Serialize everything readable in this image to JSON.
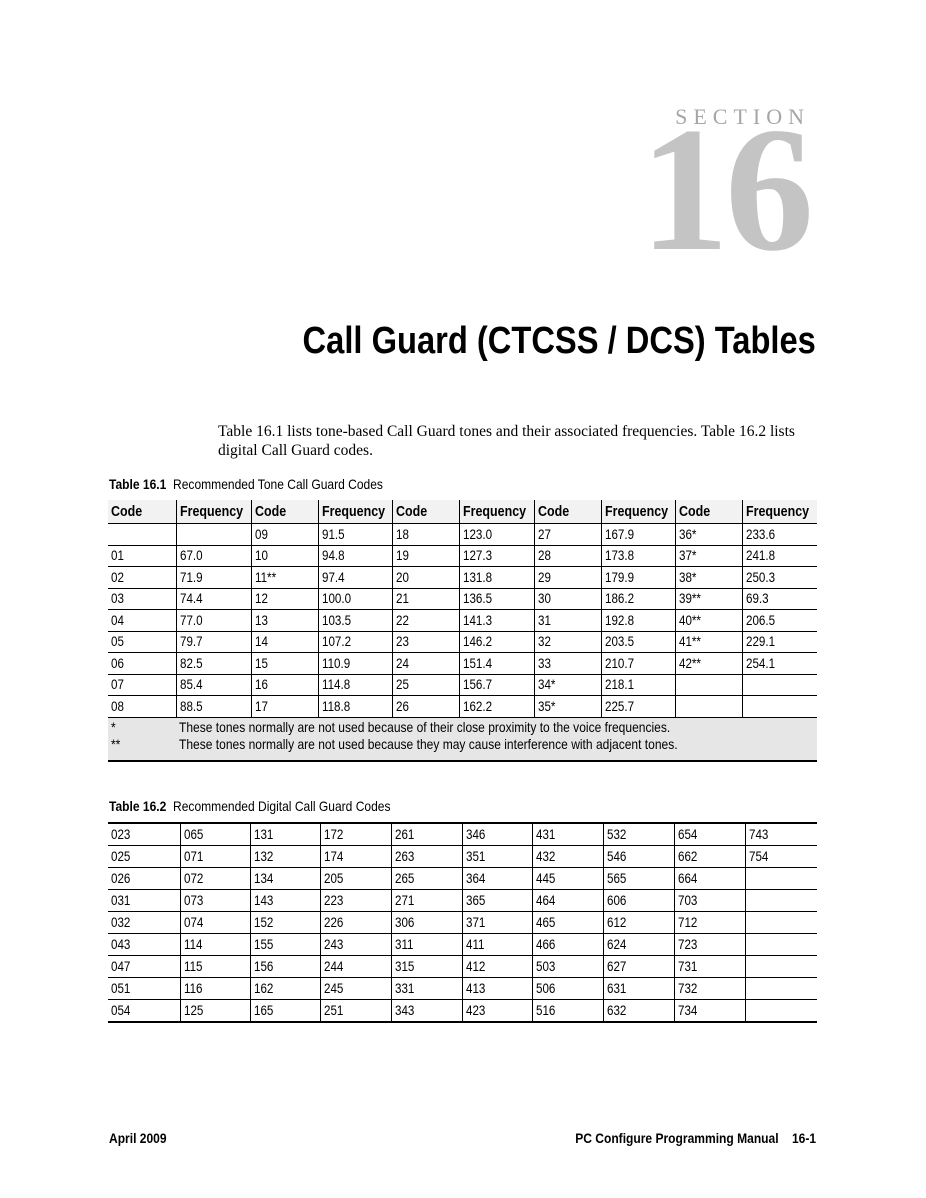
{
  "header": {
    "section_label": "SECTION",
    "section_number": "16",
    "title": "Call Guard (CTCSS / DCS) Tables"
  },
  "intro": "Table 16.1 lists tone-based Call Guard tones and their associated frequencies. Table 16.2 lists digital Call Guard codes.",
  "table1": {
    "caption_num": "Table 16.1",
    "caption_text": "Recommended Tone Call Guard Codes",
    "headers": [
      "Code",
      "Frequency",
      "Code",
      "Frequency",
      "Code",
      "Frequency",
      "Code",
      "Frequency",
      "Code",
      "Frequency"
    ],
    "rows": [
      [
        "",
        "",
        "09",
        "91.5",
        "18",
        "123.0",
        "27",
        "167.9",
        "36*",
        "233.6"
      ],
      [
        "01",
        "67.0",
        "10",
        "94.8",
        "19",
        "127.3",
        "28",
        "173.8",
        "37*",
        "241.8"
      ],
      [
        "02",
        "71.9",
        "11**",
        "97.4",
        "20",
        "131.8",
        "29",
        "179.9",
        "38*",
        "250.3"
      ],
      [
        "03",
        "74.4",
        "12",
        "100.0",
        "21",
        "136.5",
        "30",
        "186.2",
        "39**",
        "69.3"
      ],
      [
        "04",
        "77.0",
        "13",
        "103.5",
        "22",
        "141.3",
        "31",
        "192.8",
        "40**",
        "206.5"
      ],
      [
        "05",
        "79.7",
        "14",
        "107.2",
        "23",
        "146.2",
        "32",
        "203.5",
        "41**",
        "229.1"
      ],
      [
        "06",
        "82.5",
        "15",
        "110.9",
        "24",
        "151.4",
        "33",
        "210.7",
        "42**",
        "254.1"
      ],
      [
        "07",
        "85.4",
        "16",
        "114.8",
        "25",
        "156.7",
        "34*",
        "218.1",
        "",
        ""
      ],
      [
        "08",
        "88.5",
        "17",
        "118.8",
        "26",
        "162.2",
        "35*",
        "225.7",
        "",
        ""
      ]
    ],
    "notes": [
      {
        "mark": "*",
        "text": "These tones normally are not used because of their close proximity to the voice frequencies."
      },
      {
        "mark": "**",
        "text": "These tones normally are not used because they may cause interference with adjacent tones."
      }
    ]
  },
  "table2": {
    "caption_num": "Table 16.2",
    "caption_text": "Recommended Digital Call Guard Codes",
    "rows": [
      [
        "023",
        "065",
        "131",
        "172",
        "261",
        "346",
        "431",
        "532",
        "654",
        "743"
      ],
      [
        "025",
        "071",
        "132",
        "174",
        "263",
        "351",
        "432",
        "546",
        "662",
        "754"
      ],
      [
        "026",
        "072",
        "134",
        "205",
        "265",
        "364",
        "445",
        "565",
        "664",
        ""
      ],
      [
        "031",
        "073",
        "143",
        "223",
        "271",
        "365",
        "464",
        "606",
        "703",
        ""
      ],
      [
        "032",
        "074",
        "152",
        "226",
        "306",
        "371",
        "465",
        "612",
        "712",
        ""
      ],
      [
        "043",
        "114",
        "155",
        "243",
        "311",
        "411",
        "466",
        "624",
        "723",
        ""
      ],
      [
        "047",
        "115",
        "156",
        "244",
        "315",
        "412",
        "503",
        "627",
        "731",
        ""
      ],
      [
        "051",
        "116",
        "162",
        "245",
        "331",
        "413",
        "506",
        "631",
        "732",
        ""
      ],
      [
        "054",
        "125",
        "165",
        "251",
        "343",
        "423",
        "516",
        "632",
        "734",
        ""
      ]
    ]
  },
  "footer": {
    "date": "April 2009",
    "manual": "PC Configure Programming Manual    16-1"
  },
  "colors": {
    "section_gray": "#c4c4c4",
    "table_note_bg": "#e6e6e6"
  }
}
